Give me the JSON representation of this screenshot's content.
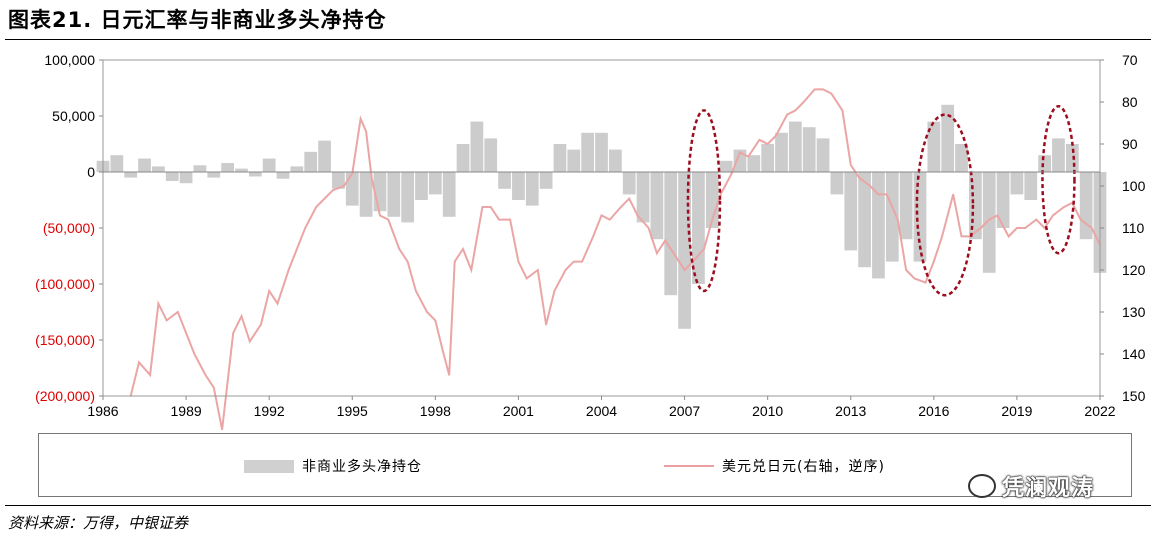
{
  "header": {
    "title": "图表21. 日元汇率与非商业多头净持仓"
  },
  "source": "资料来源：万得，中银证券",
  "watermark": "凭澜观涛",
  "colors": {
    "area": "#cccccc",
    "line": "#eba5a5",
    "negative_tick": "#e00000",
    "ellipse": "#9b0d1f"
  },
  "chart_data": {
    "type": "area",
    "xlim": [
      1986,
      2022
    ],
    "x_ticks": [
      "1986",
      "1989",
      "1992",
      "1995",
      "1998",
      "2001",
      "2004",
      "2007",
      "2010",
      "2013",
      "2016",
      "2019",
      "2022"
    ],
    "y_left": {
      "ylim": [
        -200000,
        100000
      ],
      "ticks": [
        "100,000",
        "50,000",
        "0",
        "(50,000)",
        "(100,000)",
        "(150,000)",
        "(200,000)"
      ],
      "tick_values": [
        100000,
        50000,
        0,
        -50000,
        -100000,
        -150000,
        -200000
      ]
    },
    "y_right": {
      "ylim": [
        70,
        150
      ],
      "inverted": true,
      "ticks": [
        "70",
        "80",
        "90",
        "100",
        "110",
        "120",
        "130",
        "140",
        "150"
      ],
      "tick_values": [
        70,
        80,
        90,
        100,
        110,
        120,
        130,
        140,
        150
      ]
    },
    "series": [
      {
        "name": "非商业多头净持仓",
        "type": "area",
        "axis": "left",
        "x": [
          1986.0,
          1986.5,
          1987.0,
          1987.5,
          1988.0,
          1988.5,
          1989.0,
          1989.5,
          1990.0,
          1990.5,
          1991.0,
          1991.5,
          1992.0,
          1992.5,
          1993.0,
          1993.5,
          1994.0,
          1994.5,
          1995.0,
          1995.5,
          1996.0,
          1996.5,
          1997.0,
          1997.5,
          1998.0,
          1998.5,
          1999.0,
          1999.5,
          2000.0,
          2000.5,
          2001.0,
          2001.5,
          2002.0,
          2002.5,
          2003.0,
          2003.5,
          2004.0,
          2004.5,
          2005.0,
          2005.5,
          2006.0,
          2006.5,
          2007.0,
          2007.5,
          2008.0,
          2008.5,
          2009.0,
          2009.5,
          2010.0,
          2010.5,
          2011.0,
          2011.5,
          2012.0,
          2012.5,
          2013.0,
          2013.5,
          2014.0,
          2014.5,
          2015.0,
          2015.5,
          2016.0,
          2016.5,
          2017.0,
          2017.5,
          2018.0,
          2018.5,
          2019.0,
          2019.5,
          2020.0,
          2020.5,
          2021.0,
          2021.5,
          2022.0
        ],
        "values": [
          10000,
          15000,
          -5000,
          12000,
          5000,
          -8000,
          -10000,
          6000,
          -5000,
          8000,
          3000,
          -4000,
          12000,
          -6000,
          5000,
          18000,
          28000,
          -15000,
          -30000,
          -40000,
          -35000,
          -40000,
          -45000,
          -25000,
          -20000,
          -40000,
          25000,
          45000,
          30000,
          -15000,
          -25000,
          -30000,
          -15000,
          25000,
          20000,
          35000,
          35000,
          20000,
          -20000,
          -45000,
          -60000,
          -110000,
          -140000,
          -100000,
          -50000,
          10000,
          20000,
          15000,
          25000,
          35000,
          45000,
          40000,
          30000,
          -20000,
          -70000,
          -85000,
          -95000,
          -80000,
          -60000,
          -80000,
          45000,
          60000,
          25000,
          -60000,
          -90000,
          -50000,
          -20000,
          -25000,
          15000,
          30000,
          25000,
          -60000,
          -90000
        ]
      },
      {
        "name": "美元兑日元(右轴，逆序)",
        "type": "line",
        "axis": "right",
        "x": [
          1987.0,
          1987.3,
          1987.7,
          1988.0,
          1988.3,
          1988.7,
          1989.0,
          1989.3,
          1989.7,
          1990.0,
          1990.3,
          1990.7,
          1991.0,
          1991.3,
          1991.7,
          1992.0,
          1992.3,
          1992.7,
          1993.0,
          1993.3,
          1993.7,
          1994.0,
          1994.3,
          1994.7,
          1995.0,
          1995.3,
          1995.5,
          1995.7,
          1996.0,
          1996.3,
          1996.7,
          1997.0,
          1997.3,
          1997.7,
          1998.0,
          1998.3,
          1998.5,
          1998.7,
          1999.0,
          1999.3,
          1999.7,
          2000.0,
          2000.3,
          2000.7,
          2001.0,
          2001.3,
          2001.7,
          2002.0,
          2002.3,
          2002.7,
          2003.0,
          2003.3,
          2003.7,
          2004.0,
          2004.3,
          2004.7,
          2005.0,
          2005.3,
          2005.7,
          2006.0,
          2006.3,
          2006.7,
          2007.0,
          2007.3,
          2007.7,
          2008.0,
          2008.3,
          2008.7,
          2009.0,
          2009.3,
          2009.7,
          2010.0,
          2010.3,
          2010.7,
          2011.0,
          2011.3,
          2011.7,
          2012.0,
          2012.3,
          2012.7,
          2013.0,
          2013.3,
          2013.7,
          2014.0,
          2014.3,
          2014.7,
          2015.0,
          2015.3,
          2015.7,
          2016.0,
          2016.3,
          2016.7,
          2017.0,
          2017.3,
          2017.7,
          2018.0,
          2018.3,
          2018.7,
          2019.0,
          2019.3,
          2019.7,
          2020.0,
          2020.3,
          2020.7,
          2021.0,
          2021.3,
          2021.7,
          2022.0
        ],
        "values": [
          150,
          142,
          145,
          128,
          132,
          130,
          135,
          140,
          145,
          148,
          158,
          135,
          131,
          137,
          133,
          125,
          128,
          120,
          115,
          110,
          105,
          103,
          101,
          100,
          97,
          84,
          87,
          98,
          107,
          108,
          115,
          118,
          125,
          130,
          132,
          140,
          145,
          118,
          115,
          120,
          105,
          105,
          108,
          108,
          118,
          122,
          120,
          133,
          125,
          120,
          118,
          118,
          112,
          107,
          108,
          105,
          103,
          107,
          110,
          116,
          113,
          117,
          120,
          118,
          115,
          108,
          102,
          97,
          92,
          93,
          89,
          90,
          88,
          83,
          82,
          80,
          77,
          77,
          78,
          82,
          95,
          98,
          100,
          102,
          102,
          108,
          120,
          122,
          123,
          118,
          112,
          102,
          112,
          112,
          110,
          108,
          107,
          112,
          110,
          110,
          108,
          110,
          107,
          105,
          104,
          108,
          110,
          114
        ]
      }
    ],
    "legend": {
      "placement": "bottom",
      "entries": [
        "非商业多头净持仓",
        "美元兑日元(右轴，逆序)"
      ]
    },
    "annotations": [
      {
        "type": "dashed-ellipse",
        "x_center": 2007.7,
        "y_right_range": [
          82,
          125
        ]
      },
      {
        "type": "dashed-ellipse",
        "x_center": 2016.4,
        "y_right_range": [
          83,
          126
        ]
      },
      {
        "type": "dashed-ellipse",
        "x_center": 2020.5,
        "y_right_range": [
          81,
          116
        ]
      }
    ],
    "grid": false
  }
}
